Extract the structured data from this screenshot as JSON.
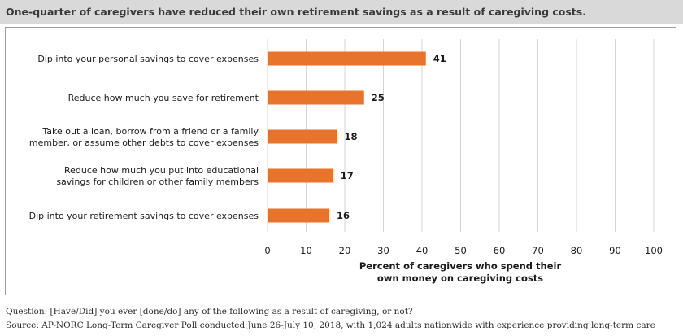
{
  "header": {
    "title": "One-quarter of caregivers have reduced their own retirement savings as a result of caregiving costs."
  },
  "colors": {
    "bar": "#e8732a",
    "grid": "#d4d4d4",
    "title_bar_bg": "#d9d9d9"
  },
  "chart_data": {
    "type": "bar",
    "orientation": "horizontal",
    "categories": [
      [
        "Dip into your personal savings to cover expenses"
      ],
      [
        "Reduce how much you save for retirement"
      ],
      [
        "Take out a loan, borrow from a friend or a family",
        "member, or assume other debts to cover expenses"
      ],
      [
        "Reduce how much you put into educational",
        "savings for children or other family members"
      ],
      [
        "Dip into your retirement savings to cover expenses"
      ]
    ],
    "values": [
      41,
      25,
      18,
      17,
      16
    ],
    "xlim": [
      0,
      100
    ],
    "xticks": [
      0,
      10,
      20,
      30,
      40,
      50,
      60,
      70,
      80,
      90,
      100
    ],
    "xlabel": [
      "Percent of caregivers who spend their",
      "own money on caregiving costs"
    ],
    "grid": "vertical"
  },
  "footnotes": {
    "question": "Question: [Have/Did] you ever [done/do] any of the following as a result of caregiving, or not?",
    "source": "Source: AP-NORC Long-Term Caregiver Poll conducted June 26-July 10, 2018, with 1,024 adults nationwide with experience providing long-term care"
  }
}
